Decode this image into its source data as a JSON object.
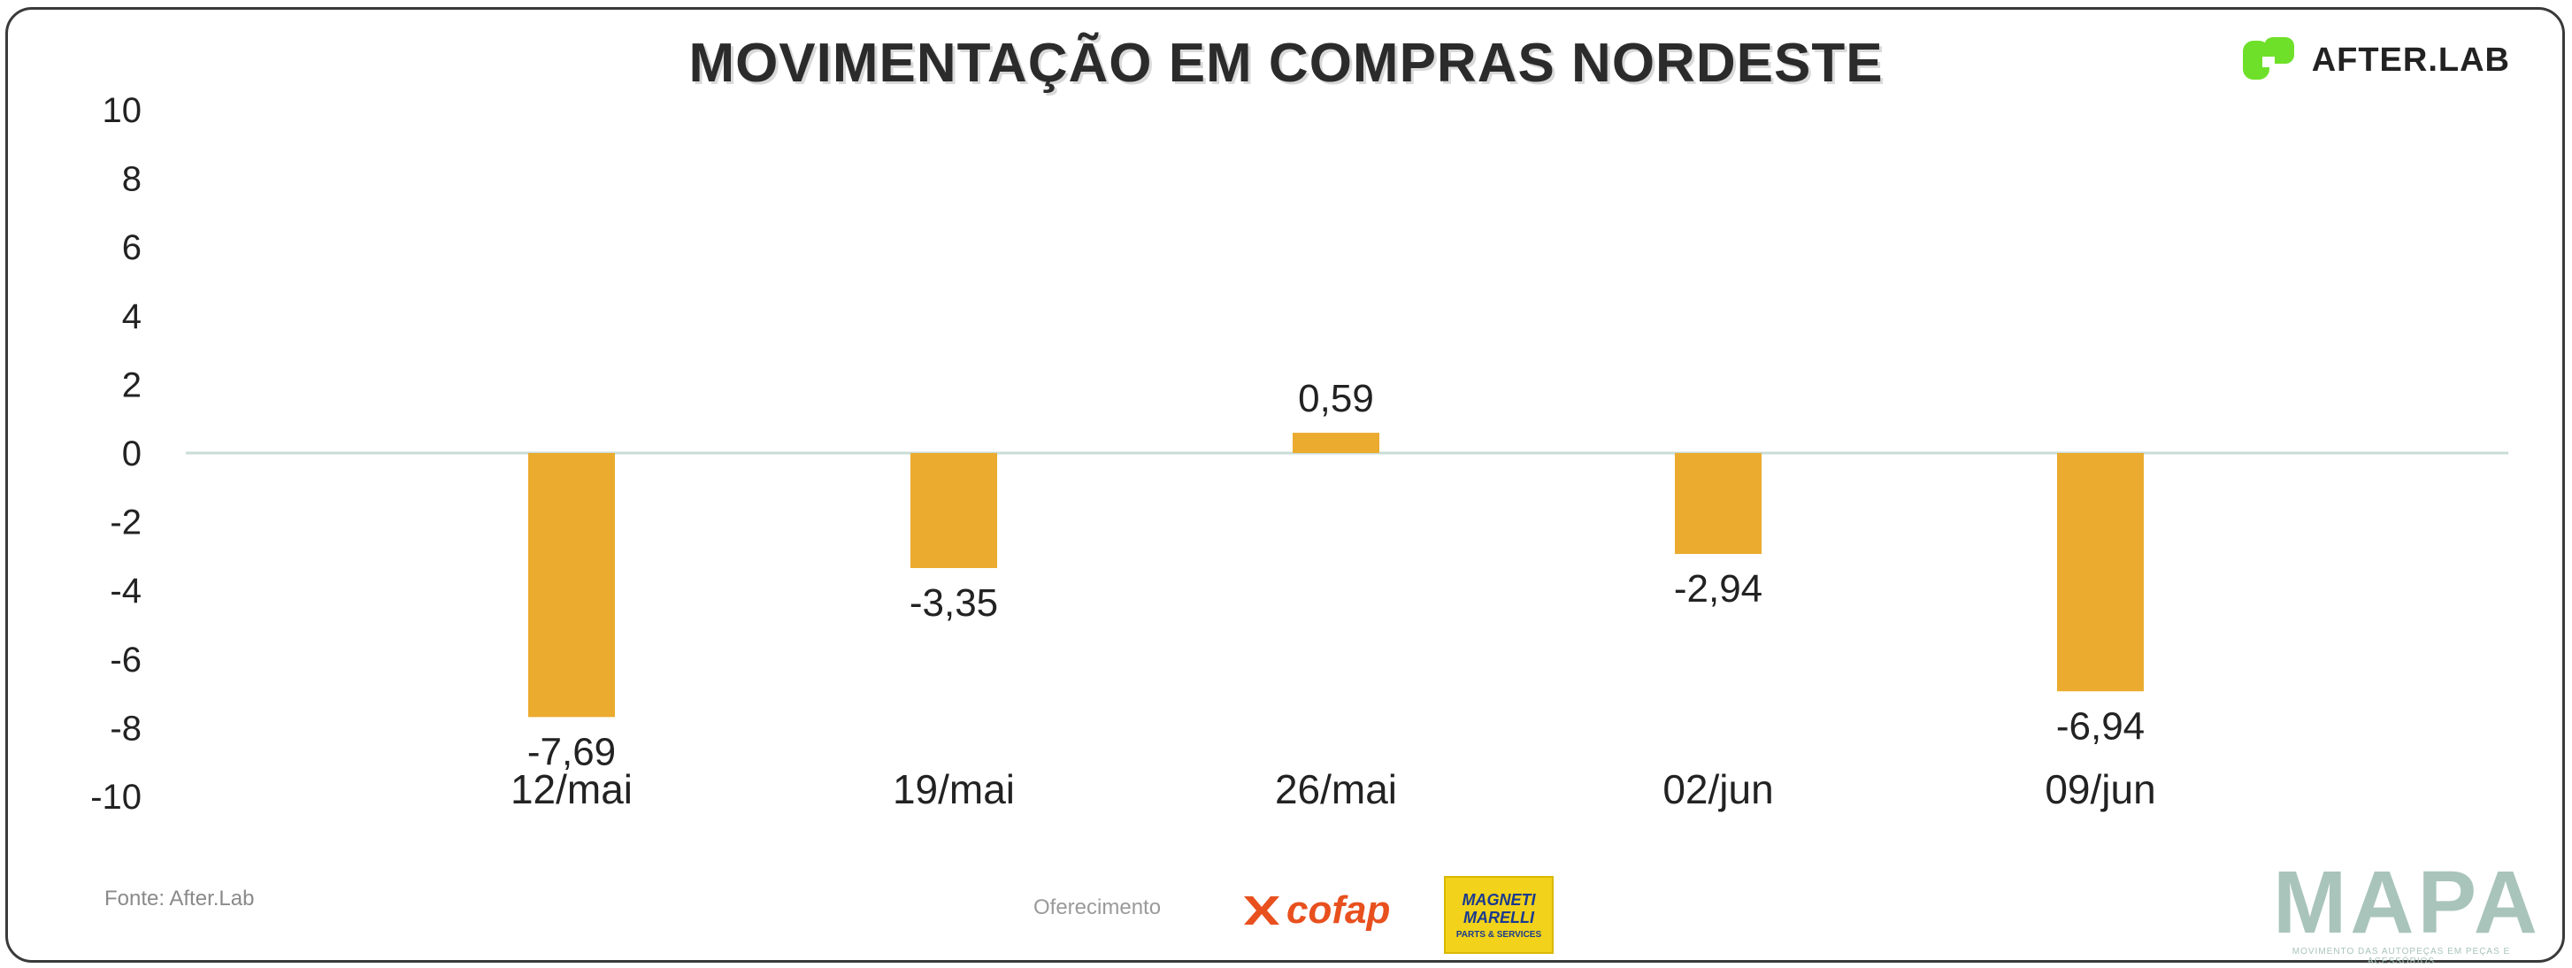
{
  "header": {
    "title": "MOVIMENTAÇÃO EM COMPRAS NORDESTE",
    "logo_text": "AFTER.LAB"
  },
  "chart_data": {
    "type": "bar",
    "title": "MOVIMENTAÇÃO EM COMPRAS NORDESTE",
    "categories": [
      "12/mai",
      "19/mai",
      "26/mai",
      "02/jun",
      "09/jun"
    ],
    "values": [
      -7.69,
      -3.35,
      0.59,
      -2.94,
      -6.94
    ],
    "value_labels": [
      "-7,69",
      "-3,35",
      "0,59",
      "-2,94",
      "-6,94"
    ],
    "ylim": [
      -10,
      10
    ],
    "yticks": [
      10,
      8,
      6,
      4,
      2,
      0,
      -2,
      -4,
      -6,
      -8,
      -10
    ],
    "xlabel": "",
    "ylabel": "",
    "grid": false,
    "bar_color": "#eaab2e"
  },
  "footer": {
    "source": "Fonte: After.Lab",
    "offer": "Oferecimento",
    "sponsor_cofap": "cofap",
    "sponsor_magneti": "MAGNETI\nMARELLI",
    "sponsor_magneti_sub": "PARTS & SERVICES",
    "brand": "MAPA",
    "brand_sub": "MOVIMENTO DAS AUTOPEÇAS EM PEÇAS E ACESSÓRIOS"
  },
  "colors": {
    "accent_green": "#6ee02a",
    "cofap_orange": "#e8501e",
    "mapa_teal": "#a9c4bb"
  }
}
